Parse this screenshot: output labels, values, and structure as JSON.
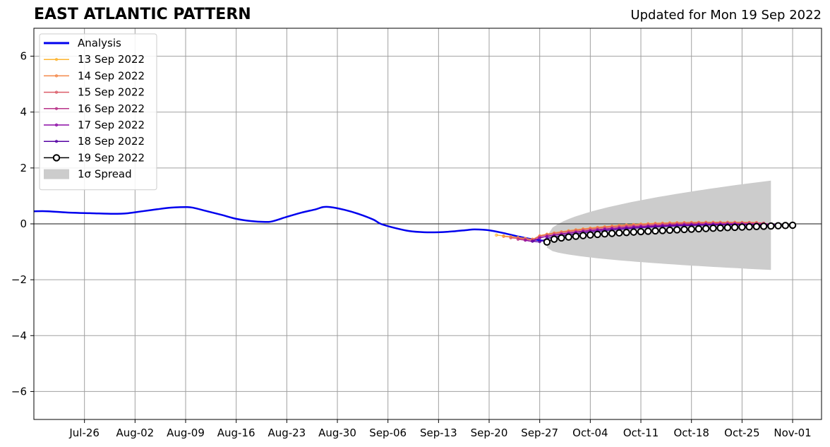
{
  "header": {
    "title": "EAST ATLANTIC PATTERN",
    "subtitle": "Updated for Mon 19 Sep 2022"
  },
  "chart_data": {
    "type": "line",
    "title": "EAST ATLANTIC PATTERN",
    "subtitle": "Updated for Mon 19 Sep 2022",
    "xlabel": "",
    "ylabel": "",
    "x_axis": {
      "type": "date",
      "start": "2022-07-19",
      "end": "2022-11-05"
    },
    "ylim": [
      -7,
      7
    ],
    "yticks": [
      -6,
      -4,
      -2,
      0,
      2,
      4,
      6
    ],
    "ytick_labels": [
      "−6",
      "−4",
      "−2",
      "0",
      "2",
      "4",
      "6"
    ],
    "xticks": [
      "2022-07-26",
      "2022-08-02",
      "2022-08-09",
      "2022-08-16",
      "2022-08-23",
      "2022-08-30",
      "2022-09-06",
      "2022-09-13",
      "2022-09-20",
      "2022-09-27",
      "2022-10-04",
      "2022-10-11",
      "2022-10-18",
      "2022-10-25",
      "2022-11-01"
    ],
    "xtick_labels": [
      "Jul-26",
      "Aug-02",
      "Aug-09",
      "Aug-16",
      "Aug-23",
      "Aug-30",
      "Sep-06",
      "Sep-13",
      "Sep-20",
      "Sep-27",
      "Oct-04",
      "Oct-11",
      "Oct-18",
      "Oct-25",
      "Nov-01"
    ],
    "grid": true,
    "zero_line": true,
    "legend_position": "top-left",
    "analysis": {
      "name": "Analysis",
      "color": "#0000ee",
      "points": [
        [
          "2022-07-19",
          0.45
        ],
        [
          "2022-07-21",
          0.45
        ],
        [
          "2022-07-24",
          0.4
        ],
        [
          "2022-07-27",
          0.38
        ],
        [
          "2022-07-30",
          0.36
        ],
        [
          "2022-08-01",
          0.38
        ],
        [
          "2022-08-03",
          0.45
        ],
        [
          "2022-08-05",
          0.52
        ],
        [
          "2022-08-07",
          0.58
        ],
        [
          "2022-08-09",
          0.6
        ],
        [
          "2022-08-10",
          0.58
        ],
        [
          "2022-08-12",
          0.45
        ],
        [
          "2022-08-14",
          0.32
        ],
        [
          "2022-08-16",
          0.18
        ],
        [
          "2022-08-18",
          0.1
        ],
        [
          "2022-08-20",
          0.07
        ],
        [
          "2022-08-21",
          0.09
        ],
        [
          "2022-08-23",
          0.25
        ],
        [
          "2022-08-25",
          0.4
        ],
        [
          "2022-08-27",
          0.52
        ],
        [
          "2022-08-28",
          0.6
        ],
        [
          "2022-08-29",
          0.6
        ],
        [
          "2022-08-31",
          0.5
        ],
        [
          "2022-09-02",
          0.35
        ],
        [
          "2022-09-04",
          0.15
        ],
        [
          "2022-09-05",
          0.0
        ],
        [
          "2022-09-07",
          -0.15
        ],
        [
          "2022-09-09",
          -0.26
        ],
        [
          "2022-09-11",
          -0.3
        ],
        [
          "2022-09-13",
          -0.3
        ],
        [
          "2022-09-15",
          -0.27
        ],
        [
          "2022-09-17",
          -0.22
        ],
        [
          "2022-09-18",
          -0.2
        ],
        [
          "2022-09-20",
          -0.23
        ],
        [
          "2022-09-22",
          -0.33
        ],
        [
          "2022-09-24",
          -0.45
        ],
        [
          "2022-09-26",
          -0.55
        ],
        [
          "2022-09-28",
          -0.62
        ]
      ]
    },
    "spread": {
      "name": "1σ Spread",
      "color": "#cccccc",
      "x_start": "2022-09-28",
      "x_end": "2022-10-29",
      "upper_start": -0.45,
      "upper_end": 1.55,
      "lower_start": -0.85,
      "lower_end": -1.65
    },
    "series": [
      {
        "name": "13 Sep 2022",
        "color": "#fdb42f",
        "start": "2022-09-21",
        "days": 35,
        "v0": -0.4,
        "vmin": -0.55,
        "tmin": 5,
        "vend": 0.05
      },
      {
        "name": "14 Sep 2022",
        "color": "#f48849",
        "start": "2022-09-22",
        "days": 35,
        "v0": -0.45,
        "vmin": -0.55,
        "tmin": 4,
        "vend": 0.05
      },
      {
        "name": "15 Sep 2022",
        "color": "#db5c68",
        "start": "2022-09-23",
        "days": 35,
        "v0": -0.5,
        "vmin": -0.57,
        "tmin": 3,
        "vend": 0.03
      },
      {
        "name": "16 Sep 2022",
        "color": "#b83289",
        "start": "2022-09-24",
        "days": 35,
        "v0": -0.55,
        "vmin": -0.62,
        "tmin": 2,
        "vend": 0.0
      },
      {
        "name": "17 Sep 2022",
        "color": "#8b0aa5",
        "start": "2022-09-25",
        "days": 35,
        "v0": -0.58,
        "vmin": -0.62,
        "tmin": 1,
        "vend": -0.02
      },
      {
        "name": "18 Sep 2022",
        "color": "#5402a3",
        "start": "2022-09-26",
        "days": 35,
        "v0": -0.62,
        "vmin": -0.64,
        "tmin": 1,
        "vend": -0.04
      },
      {
        "name": "19 Sep 2022",
        "color": "#000000",
        "start": "2022-09-28",
        "days": 34,
        "v0": -0.65,
        "vmin": -0.65,
        "tmin": 0,
        "vend": -0.05,
        "open_markers": true
      }
    ]
  }
}
